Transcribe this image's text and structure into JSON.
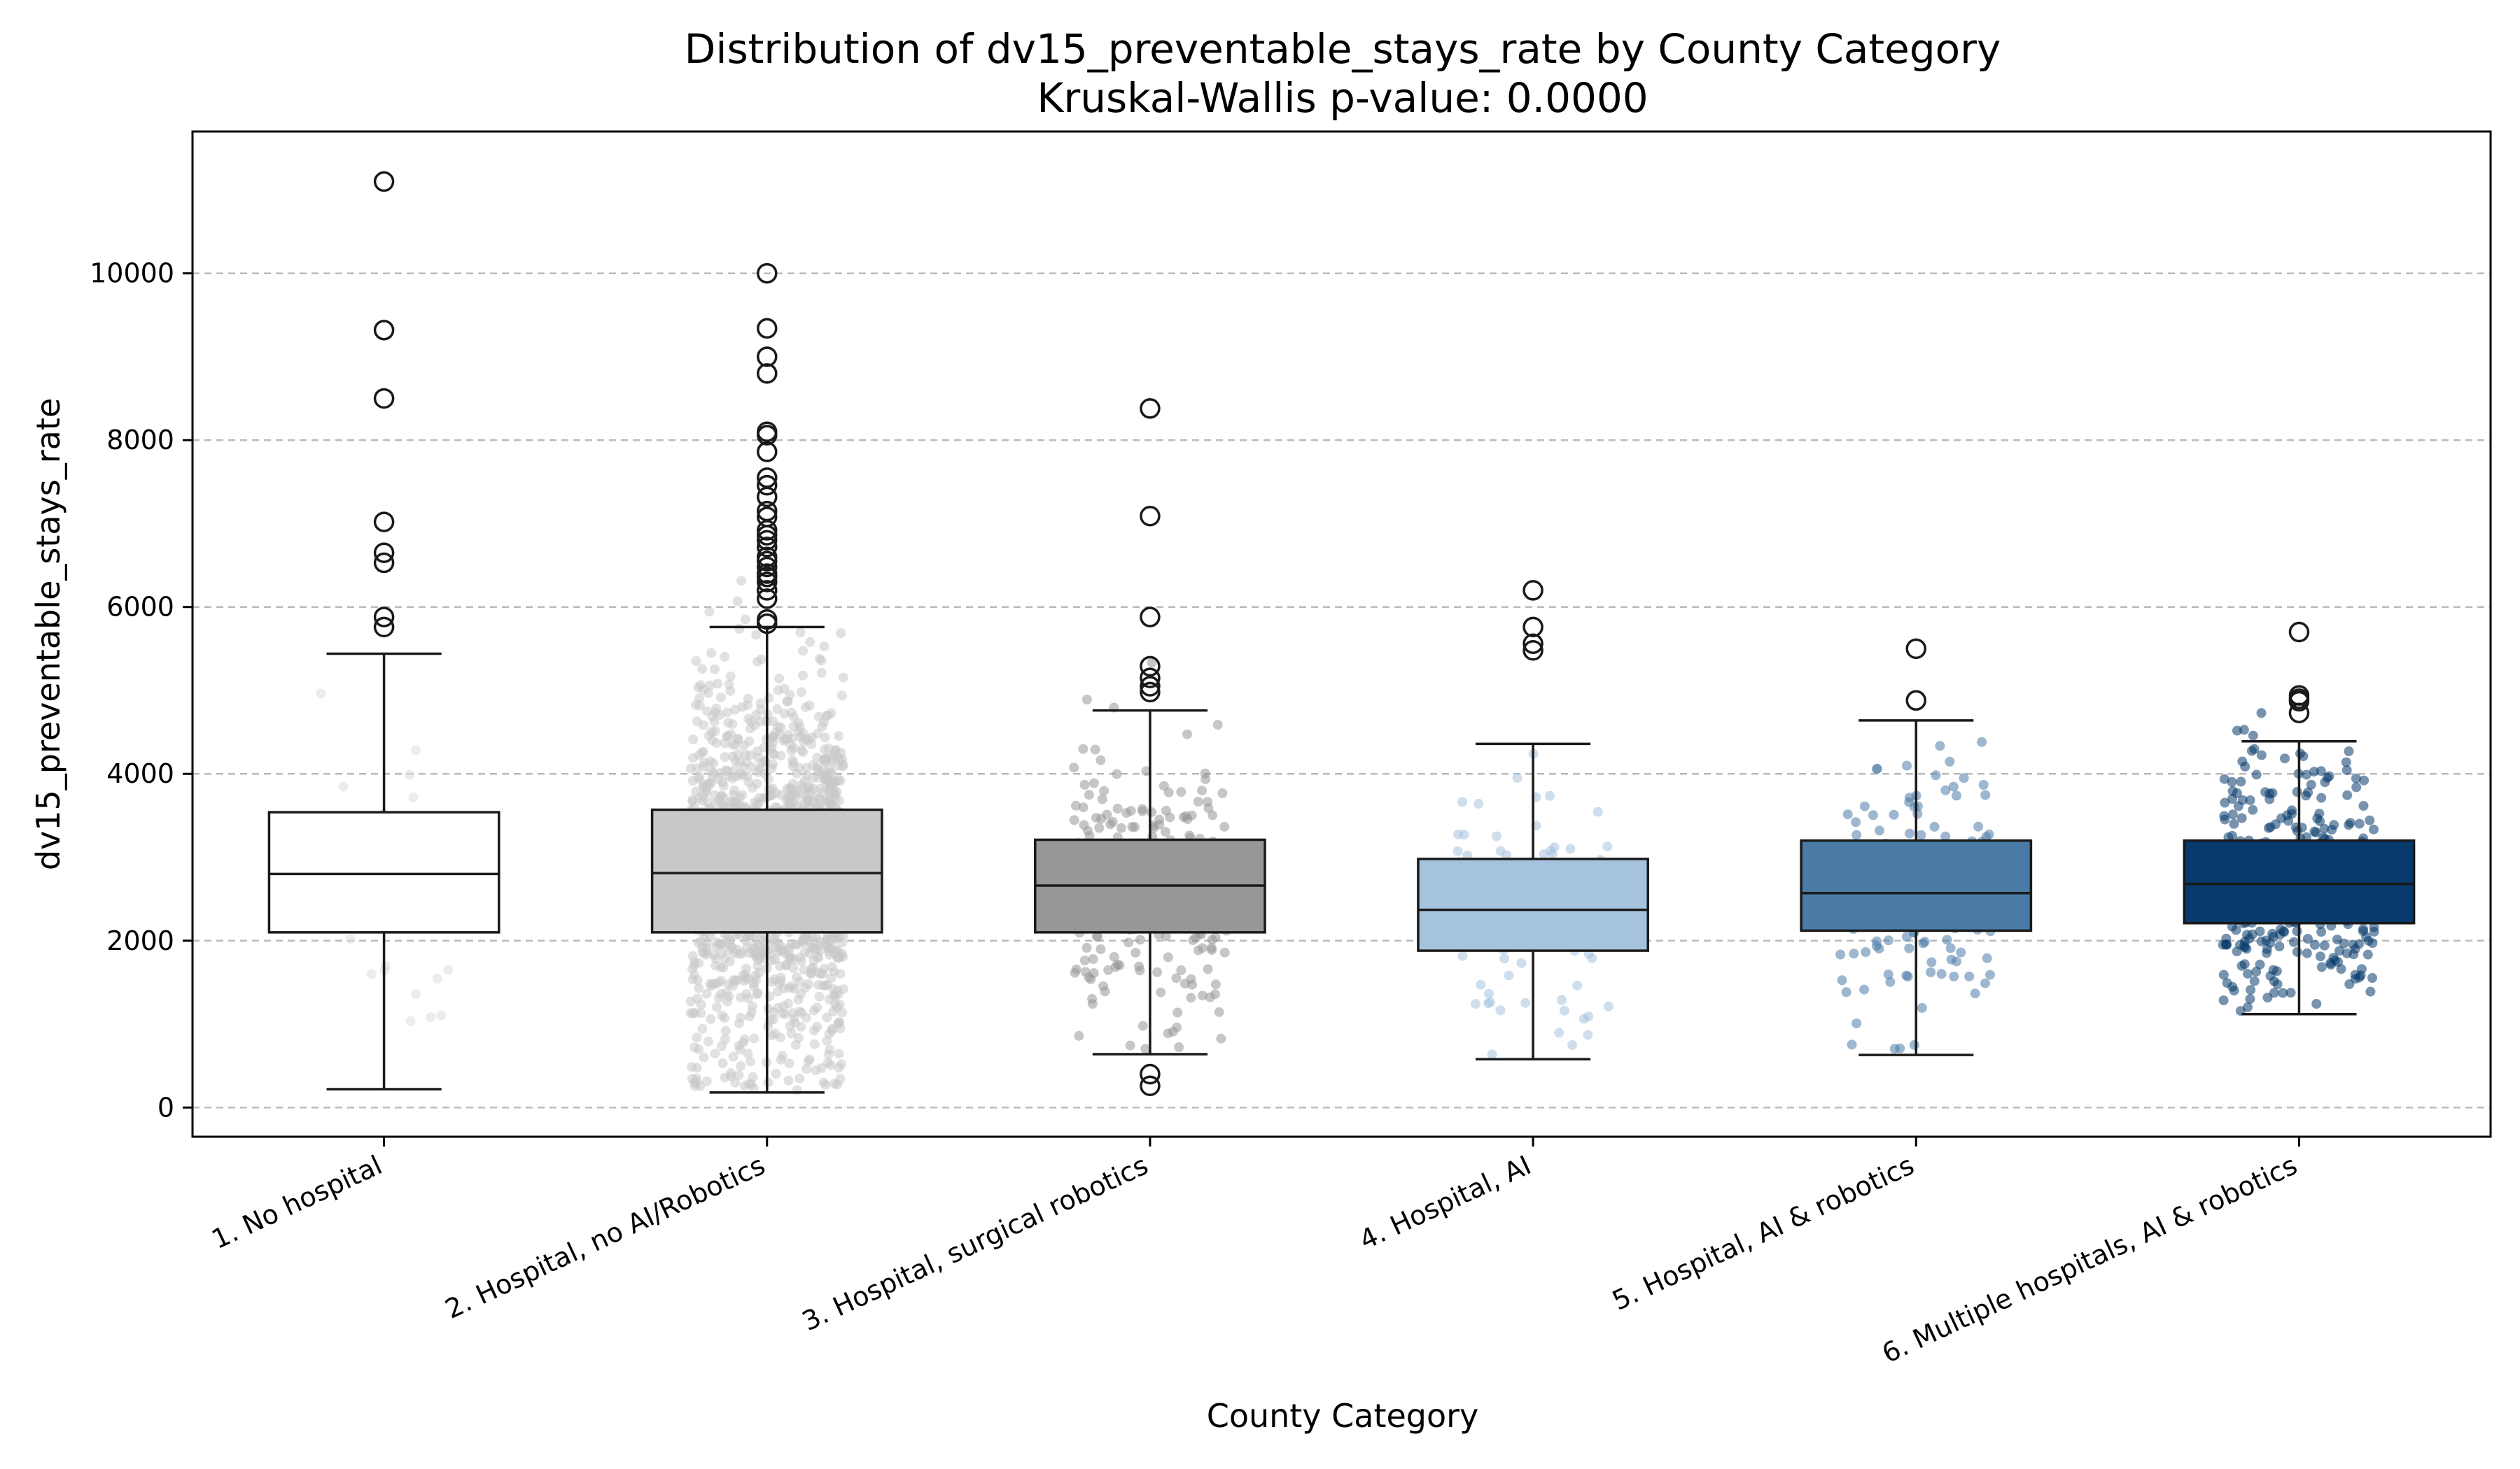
{
  "chart_data": {
    "type": "box",
    "title": "Distribution of dv15_preventable_stays_rate by County Category",
    "subtitle": "Kruskal-Wallis p-value: 0.0000",
    "xlabel": "County Category",
    "ylabel": "dv15_preventable_stays_rate",
    "ylim": [
      -350,
      11700
    ],
    "yticks": [
      0,
      2000,
      4000,
      6000,
      8000,
      10000
    ],
    "grid": "y-dashed",
    "categories": [
      "1. No hospital",
      "2. Hospital, no AI/Robotics",
      "3. Hospital, surgical robotics",
      "4. Hospital, AI",
      "5. Hospital, AI & robotics",
      "6. Multiple hospitals, AI & robotics"
    ],
    "boxes": [
      {
        "category": "1. No hospital",
        "color": "#ffffff",
        "whisker_low": 220,
        "q1": 2100,
        "median": 2800,
        "q3": 3540,
        "whisker_high": 5440,
        "outliers": [
          11100,
          9320,
          8500,
          7020,
          6650,
          6530,
          5880,
          5760
        ]
      },
      {
        "category": "2. Hospital, no AI/Robotics",
        "color": "#c8c8c8",
        "whisker_low": 180,
        "q1": 2100,
        "median": 2810,
        "q3": 3570,
        "whisker_high": 5760,
        "outliers": [
          10000,
          9340,
          9000,
          8800,
          8100,
          8060,
          7860,
          7550,
          7460,
          7320,
          7150,
          7080,
          6920,
          6860,
          6800,
          6720,
          6600,
          6550,
          6480,
          6400,
          6360,
          6300,
          6200,
          6100,
          5850,
          5800
        ]
      },
      {
        "category": "3. Hospital, surgical robotics",
        "color": "#979797",
        "whisker_low": 640,
        "q1": 2100,
        "median": 2660,
        "q3": 3210,
        "whisker_high": 4760,
        "outliers": [
          8380,
          7090,
          5880,
          5290,
          5150,
          5050,
          4980,
          400,
          260
        ]
      },
      {
        "category": "4. Hospital, AI",
        "color": "#a6c3de",
        "whisker_low": 580,
        "q1": 1880,
        "median": 2370,
        "q3": 2980,
        "whisker_high": 4360,
        "outliers": [
          6200,
          5760,
          5560,
          5480
        ]
      },
      {
        "category": "5. Hospital, AI & robotics",
        "color": "#4a7ba7",
        "whisker_low": 630,
        "q1": 2120,
        "median": 2570,
        "q3": 3200,
        "whisker_high": 4640,
        "outliers": [
          5500,
          4880
        ]
      },
      {
        "category": "6. Multiple hospitals, AI & robotics",
        "color": "#083a6c",
        "whisker_low": 1120,
        "q1": 2210,
        "median": 2680,
        "q3": 3200,
        "whisker_high": 4390,
        "outliers": [
          5700,
          4940,
          4900,
          4870,
          4730
        ]
      }
    ],
    "jitter_points": [
      {
        "category": "1. No hospital",
        "color": "#dddddd",
        "count": 40,
        "range": [
          300,
          5300
        ]
      },
      {
        "category": "2. Hospital, no AI/Robotics",
        "color": "#c8c8c8",
        "count": 1400,
        "range": [
          200,
          6800
        ]
      },
      {
        "category": "3. Hospital, surgical robotics",
        "color": "#979797",
        "count": 240,
        "range": [
          700,
          5900
        ]
      },
      {
        "category": "4. Hospital, AI",
        "color": "#a6c3de",
        "count": 90,
        "range": [
          600,
          6200
        ]
      },
      {
        "category": "5. Hospital, AI & robotics",
        "color": "#4a7ba7",
        "count": 130,
        "range": [
          650,
          5500
        ]
      },
      {
        "category": "6. Multiple hospitals, AI & robotics",
        "color": "#083a6c",
        "count": 380,
        "range": [
          1150,
          5700
        ]
      }
    ]
  }
}
